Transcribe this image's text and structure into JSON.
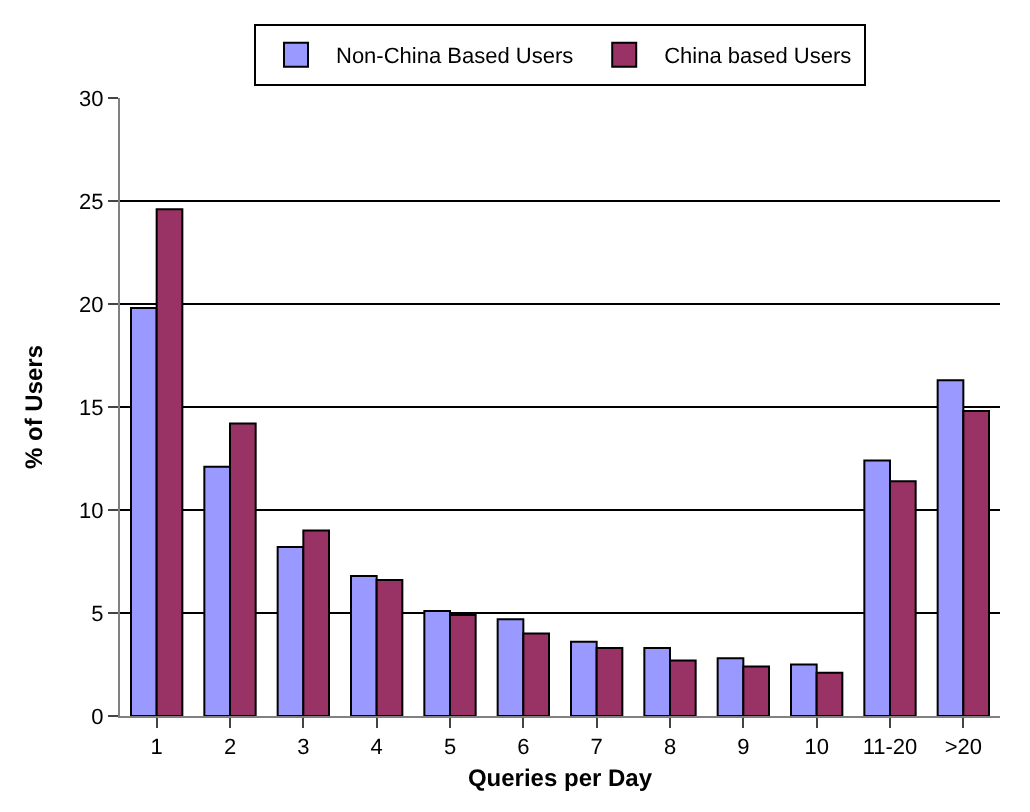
{
  "chart_data": {
    "type": "bar",
    "xlabel": "Queries per Day",
    "ylabel": "% of Users",
    "categories": [
      "1",
      "2",
      "3",
      "4",
      "5",
      "6",
      "7",
      "8",
      "9",
      "10",
      "11-20",
      ">20"
    ],
    "series": [
      {
        "name": "Non-China Based Users",
        "color": "#9999ff",
        "values": [
          19.8,
          12.1,
          8.2,
          6.8,
          5.1,
          4.7,
          3.6,
          3.3,
          2.8,
          2.5,
          12.4,
          16.3
        ]
      },
      {
        "name": "China based Users",
        "color": "#993366",
        "values": [
          24.6,
          14.2,
          9.0,
          6.6,
          4.9,
          4.0,
          3.3,
          2.7,
          2.4,
          2.1,
          11.4,
          14.8
        ]
      }
    ],
    "ylim": [
      0,
      30
    ],
    "yticks": [
      0,
      5,
      10,
      15,
      20,
      25,
      30
    ],
    "grid": "y",
    "legend": "top"
  }
}
